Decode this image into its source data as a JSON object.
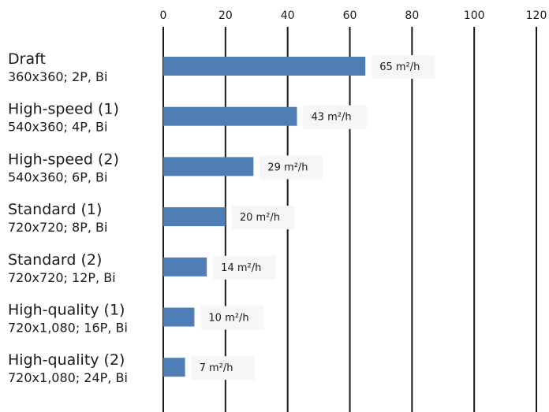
{
  "chart_data": {
    "type": "bar",
    "orientation": "horizontal",
    "categories": [
      {
        "name": "Draft",
        "sub": "360x360; 2P, Bi"
      },
      {
        "name": "High-speed (1)",
        "sub": "540x360; 4P, Bi"
      },
      {
        "name": "High-speed (2)",
        "sub": "540x360; 6P, Bi"
      },
      {
        "name": "Standard (1)",
        "sub": "720x720; 8P, Bi"
      },
      {
        "name": "Standard (2)",
        "sub": "720x720; 12P, Bi"
      },
      {
        "name": "High-quality (1)",
        "sub": "720x1,080; 16P, Bi"
      },
      {
        "name": "High-quality (2)",
        "sub": "720x1,080; 24P, Bi"
      }
    ],
    "values": [
      65,
      43,
      29,
      20,
      14,
      10,
      7
    ],
    "value_labels": [
      "65 m²/h",
      "43 m²/h",
      "29 m²/h",
      "20 m²/h",
      "14 m²/h",
      "10 m²/h",
      "7 m²/h"
    ],
    "x_ticks": [
      "0",
      "20",
      "40",
      "60",
      "80",
      "100",
      "120"
    ],
    "xlim": [
      0,
      120
    ],
    "x_axis_position": "top",
    "grid": true,
    "title": "",
    "xlabel": "",
    "ylabel": "",
    "colors": {
      "bar": "#4f7db5",
      "grid": "#1a1a1a",
      "label_bg": "#f6f6f6"
    }
  }
}
